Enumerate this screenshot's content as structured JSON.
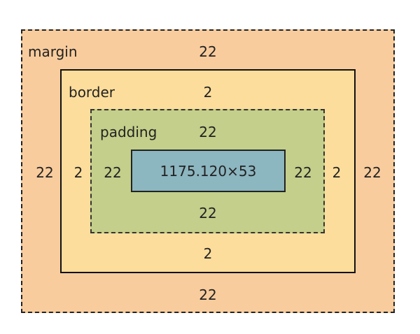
{
  "box_model": {
    "margin": {
      "label": "margin",
      "top": "22",
      "right": "22",
      "bottom": "22",
      "left": "22"
    },
    "border": {
      "label": "border",
      "top": "2",
      "right": "2",
      "bottom": "2",
      "left": "2"
    },
    "padding": {
      "label": "padding",
      "top": "22",
      "right": "22",
      "bottom": "22",
      "left": "22"
    },
    "content": {
      "dimensions": "1175.120×53"
    },
    "colors": {
      "margin": "#f9cc9d",
      "border": "#fddd9b",
      "padding": "#c3cf8a",
      "content": "#8cb6c0"
    }
  }
}
